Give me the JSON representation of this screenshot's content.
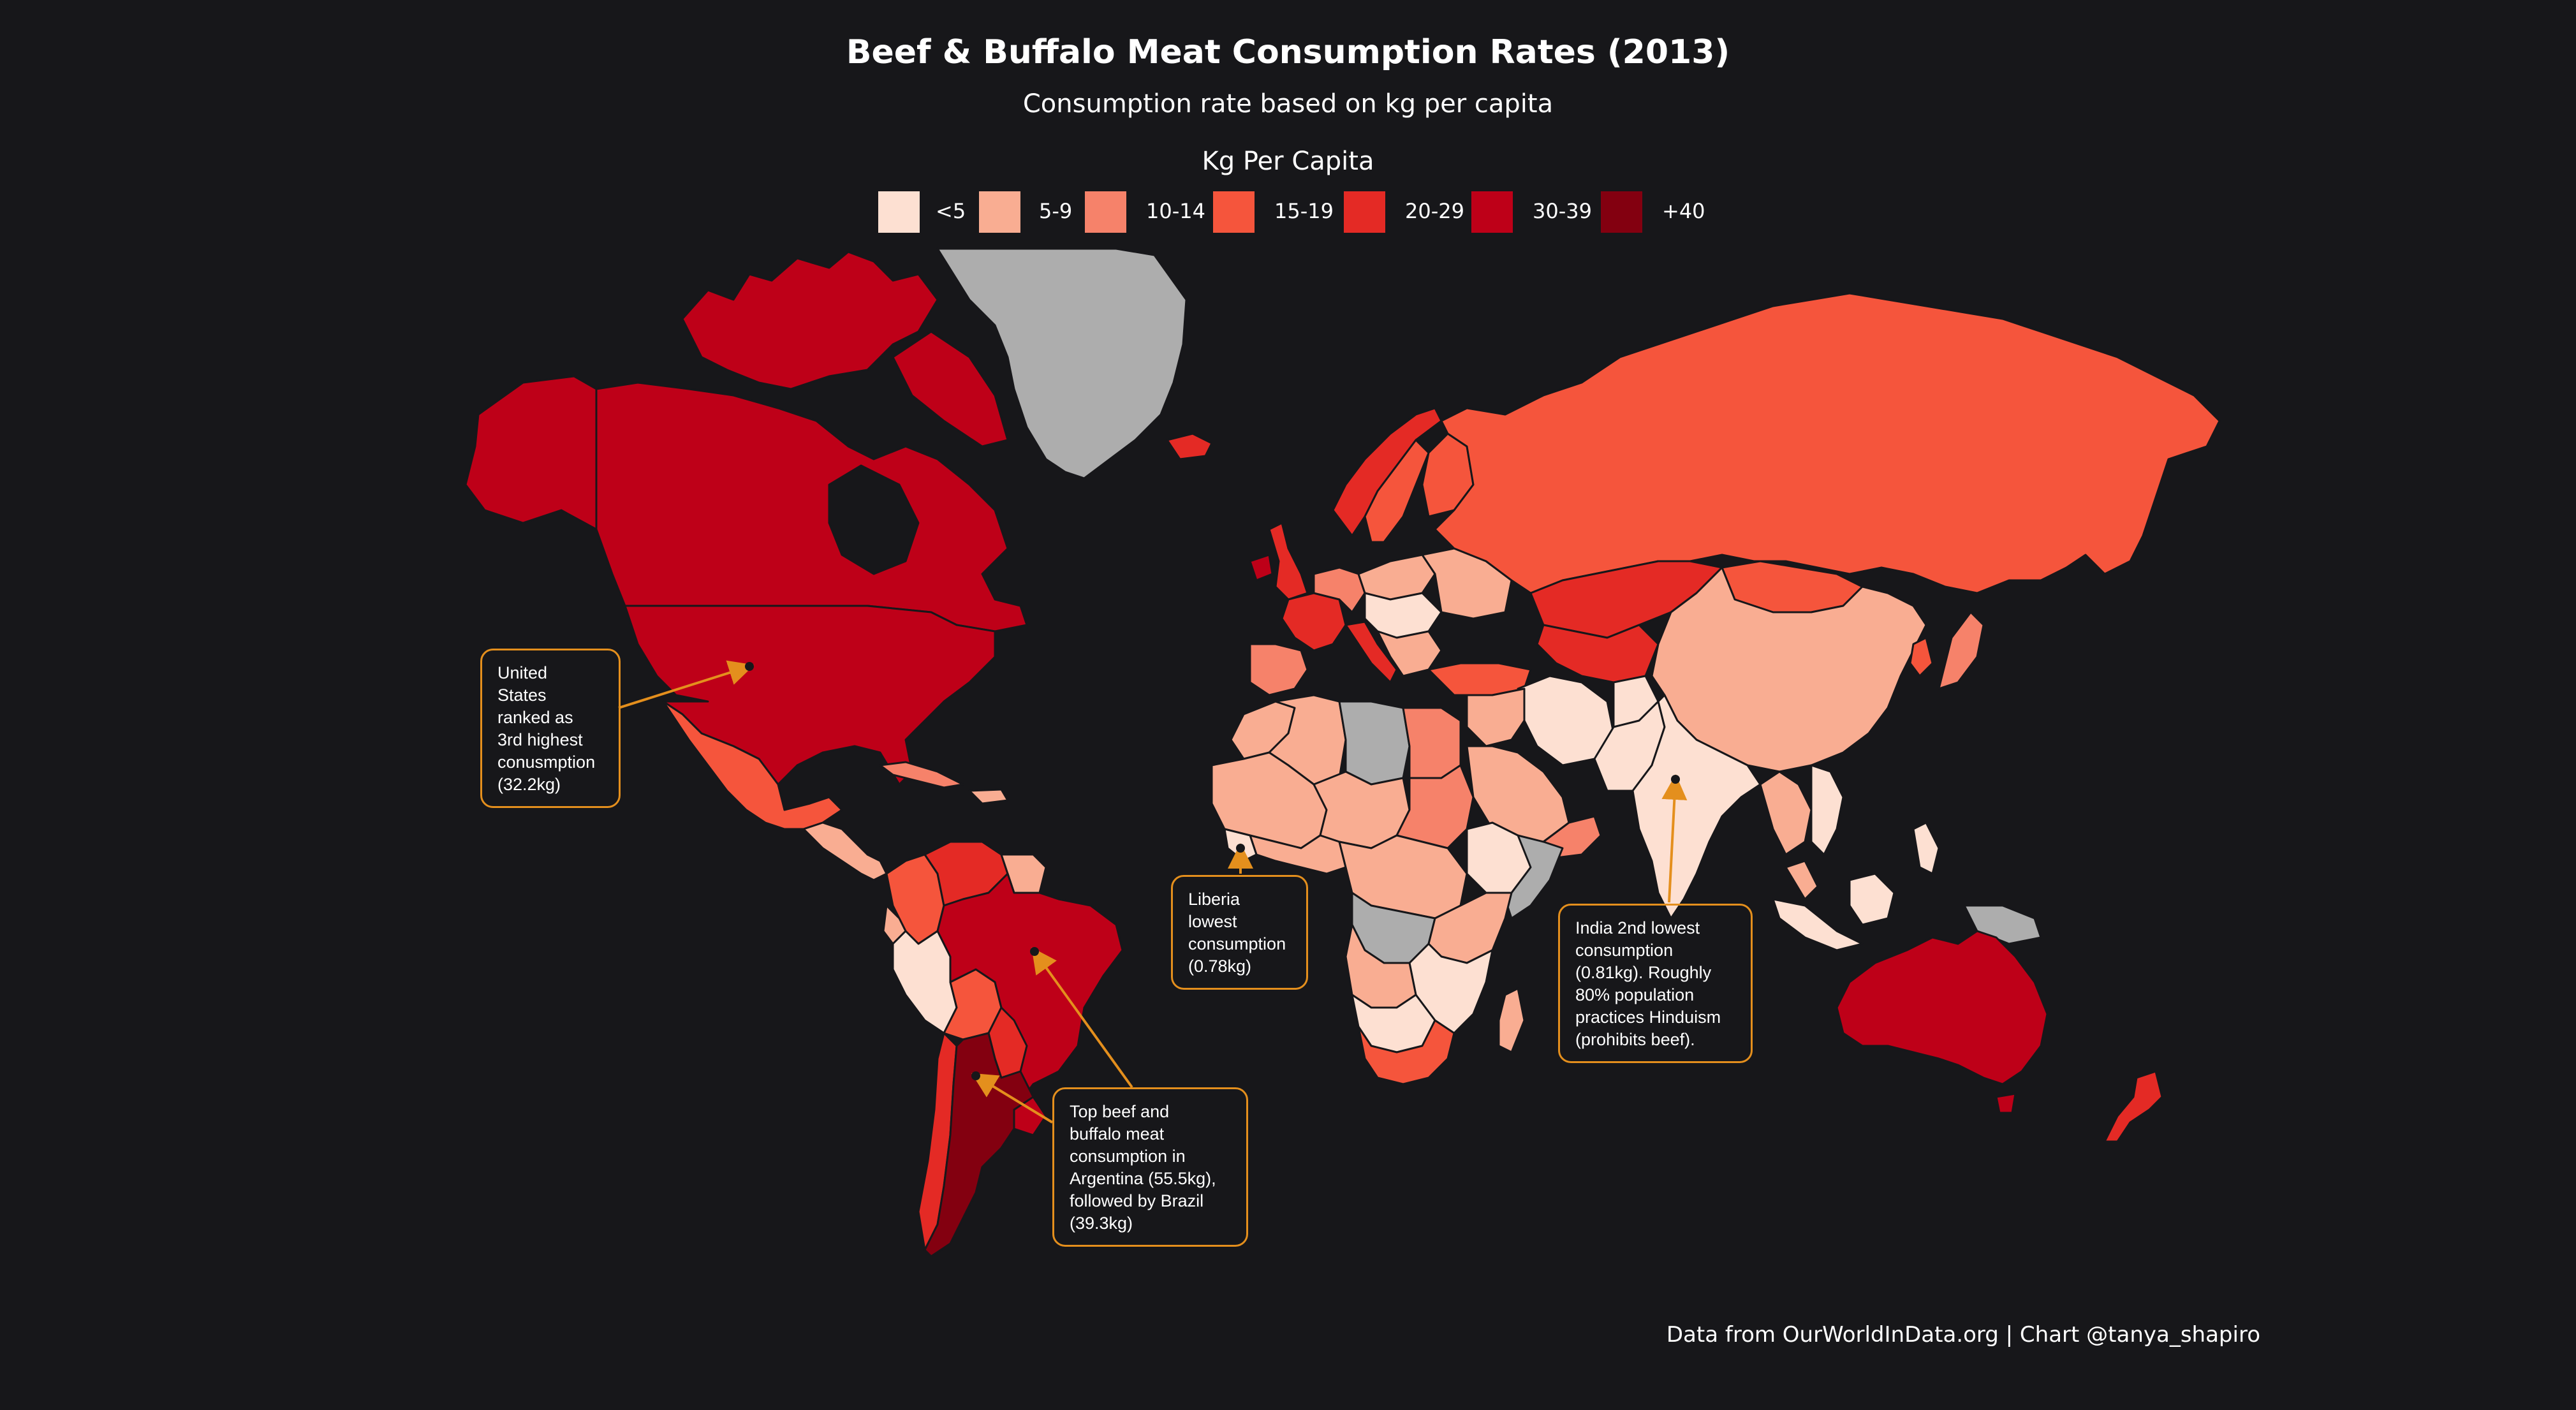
{
  "title": "Beef & Buffalo Meat Consumption Rates (2013)",
  "subtitle": "Consumption rate based on kg per capita",
  "legend": {
    "title": "Kg Per Capita",
    "items": [
      {
        "label": "<5",
        "color": "#fde0d2"
      },
      {
        "label": "5-9",
        "color": "#f9ad92"
      },
      {
        "label": "10-14",
        "color": "#f6826a"
      },
      {
        "label": "15-19",
        "color": "#f5553c"
      },
      {
        "label": "20-29",
        "color": "#e42a25"
      },
      {
        "label": "30-39",
        "color": "#be0018"
      },
      {
        "label": "+40",
        "color": "#830010"
      }
    ]
  },
  "no_data_color": "#adadad",
  "annotations": [
    {
      "id": "usa",
      "text": "United\nStates\nranked as\n3rd highest\nconusmption\n(32.2kg)"
    },
    {
      "id": "liberia",
      "text": "Liberia\nlowest\nconsumption\n(0.78kg)"
    },
    {
      "id": "india",
      "text": "India 2nd lowest\nconsumption\n(0.81kg). Roughly\n80% population\npractices Hinduism\n(prohibits beef)."
    },
    {
      "id": "argentina",
      "text": "Top beef and\nbuffalo meat\nconsumption in\nArgentina (55.5kg),\nfollowed by Brazil\n(39.3kg)"
    }
  ],
  "annotation_color": "#e48f1d",
  "footer": "Data from OurWorldInData.org | Chart @tanya_shapiro"
}
